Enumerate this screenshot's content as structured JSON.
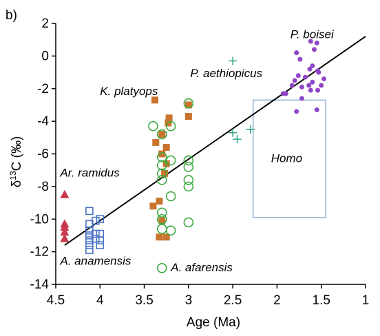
{
  "chart_data": {
    "type": "scatter",
    "panel_label": "b)",
    "xlabel": "Age (Ma)",
    "ylabel": "δ13C (‰)",
    "ylabel_delta": "δ",
    "ylabel_super": "13",
    "ylabel_rest": "C (‰)",
    "xlim": [
      4.5,
      1
    ],
    "ylim": [
      -14,
      2
    ],
    "x_ticks": [
      4.5,
      4,
      3.5,
      3,
      2.5,
      2,
      1.5,
      1
    ],
    "x_tick_labels": [
      "4.5",
      "4",
      "3.5",
      "3",
      "2.5",
      "2",
      "1.5",
      "1"
    ],
    "y_ticks": [
      2,
      0,
      -2,
      -4,
      -6,
      -8,
      -10,
      -12,
      -14
    ],
    "y_tick_labels": [
      "2",
      "0",
      "-2",
      "-4",
      "-6",
      "-8",
      "-10",
      "-12",
      "-14"
    ],
    "grid": false,
    "trend_line": {
      "x": [
        4.4,
        1.0
      ],
      "y": [
        -11.6,
        1.2
      ],
      "color": "#000000"
    },
    "homo_box": {
      "label": "Homo",
      "x": [
        2.27,
        1.45
      ],
      "y": [
        -9.9,
        -2.7
      ],
      "color": "#8fb0d3"
    },
    "series": [
      {
        "name": "Ar. ramidus",
        "marker": "triangle",
        "color": "#c8384d",
        "points": [
          [
            4.4,
            -8.5
          ],
          [
            4.4,
            -10.3
          ],
          [
            4.4,
            -10.5
          ],
          [
            4.4,
            -10.8
          ],
          [
            4.4,
            -11.2
          ]
        ]
      },
      {
        "name": "A. anamensis",
        "marker": "square-open",
        "color": "#4a72c5",
        "points": [
          [
            4.12,
            -9.5
          ],
          [
            4.12,
            -10.3
          ],
          [
            4.12,
            -10.7
          ],
          [
            4.12,
            -11.0
          ],
          [
            4.12,
            -11.3
          ],
          [
            4.12,
            -11.6
          ],
          [
            4.12,
            -11.9
          ],
          [
            4.05,
            -10.1
          ],
          [
            4.05,
            -10.9
          ],
          [
            4.05,
            -11.2
          ],
          [
            4.0,
            -10.0
          ],
          [
            4.0,
            -10.9
          ],
          [
            4.0,
            -11.3
          ],
          [
            4.0,
            -11.6
          ]
        ]
      },
      {
        "name": "K. platyops",
        "marker": "square-filled",
        "color": "#c9742e",
        "points": [
          [
            3.38,
            -2.7
          ],
          [
            3.22,
            -3.8
          ],
          [
            3.23,
            -4.1
          ],
          [
            3.0,
            -3.0
          ],
          [
            3.0,
            -3.7
          ],
          [
            3.3,
            -4.8
          ],
          [
            3.37,
            -5.3
          ],
          [
            3.25,
            -5.6
          ],
          [
            3.3,
            -6.0
          ],
          [
            3.25,
            -6.6
          ],
          [
            3.27,
            -7.2
          ],
          [
            3.33,
            -8.9
          ],
          [
            3.4,
            -9.2
          ],
          [
            3.3,
            -10.1
          ],
          [
            3.33,
            -11.1
          ],
          [
            3.25,
            -11.1
          ]
        ]
      },
      {
        "name": "A. afarensis",
        "marker": "circle-open",
        "color": "#3bab3f",
        "points": [
          [
            3.4,
            -4.3
          ],
          [
            3.3,
            -4.8
          ],
          [
            3.2,
            -4.3
          ],
          [
            3.0,
            -2.9
          ],
          [
            3.3,
            -6.2
          ],
          [
            3.3,
            -6.7
          ],
          [
            3.3,
            -7.2
          ],
          [
            3.3,
            -7.6
          ],
          [
            3.2,
            -6.4
          ],
          [
            3.2,
            -8.6
          ],
          [
            3.0,
            -6.4
          ],
          [
            3.0,
            -6.8
          ],
          [
            3.0,
            -7.6
          ],
          [
            3.0,
            -8.0
          ],
          [
            3.3,
            -9.6
          ],
          [
            3.3,
            -10.0
          ],
          [
            3.3,
            -10.6
          ],
          [
            3.2,
            -10.7
          ],
          [
            3.0,
            -10.2
          ],
          [
            3.3,
            -13.0
          ]
        ]
      },
      {
        "name": "P. aethiopicus",
        "marker": "plus",
        "color": "#3aa78d",
        "points": [
          [
            2.5,
            -0.3
          ],
          [
            2.5,
            -4.7
          ],
          [
            2.45,
            -5.1
          ],
          [
            2.3,
            -4.5
          ]
        ]
      },
      {
        "name": "P. boisei",
        "marker": "circle-filled",
        "color": "#8e46c7",
        "points": [
          [
            1.62,
            0.9
          ],
          [
            1.55,
            0.8
          ],
          [
            1.58,
            0.4
          ],
          [
            1.78,
            0.2
          ],
          [
            1.74,
            -0.2
          ],
          [
            1.6,
            -0.6
          ],
          [
            1.63,
            -0.8
          ],
          [
            1.54,
            -0.9
          ],
          [
            1.53,
            -1.0
          ],
          [
            1.76,
            -1.2
          ],
          [
            1.68,
            -1.3
          ],
          [
            1.47,
            -1.4
          ],
          [
            1.8,
            -1.5
          ],
          [
            1.6,
            -1.6
          ],
          [
            1.5,
            -1.8
          ],
          [
            1.83,
            -1.8
          ],
          [
            1.72,
            -1.9
          ],
          [
            1.64,
            -1.8
          ],
          [
            1.54,
            -2.1
          ],
          [
            1.9,
            -2.3
          ],
          [
            1.93,
            -2.3
          ],
          [
            1.72,
            -2.6
          ],
          [
            1.62,
            -2.1
          ],
          [
            1.78,
            -3.4
          ],
          [
            1.55,
            -3.3
          ]
        ]
      }
    ],
    "annotations": [
      {
        "series": "P. boisei",
        "text": "P. boisei",
        "at": [
          1.85,
          1.1
        ],
        "anchor": "start"
      },
      {
        "series": "P. aethiopicus",
        "text": "P. aethiopicus",
        "at": [
          2.98,
          -1.3
        ],
        "anchor": "start"
      },
      {
        "series": "K. platyops",
        "text": "K. platyops",
        "at": [
          4.0,
          -2.4
        ],
        "anchor": "start"
      },
      {
        "series": "Ar. ramidus",
        "text": "Ar. ramidus",
        "at": [
          4.45,
          -7.4
        ],
        "anchor": "start"
      },
      {
        "series": "A. anamensis",
        "text": "A. anamensis",
        "at": [
          4.45,
          -12.8
        ],
        "anchor": "start"
      },
      {
        "series": "A. afarensis",
        "text": "A. afarensis",
        "at": [
          3.2,
          -13.2
        ],
        "anchor": "start"
      }
    ]
  }
}
